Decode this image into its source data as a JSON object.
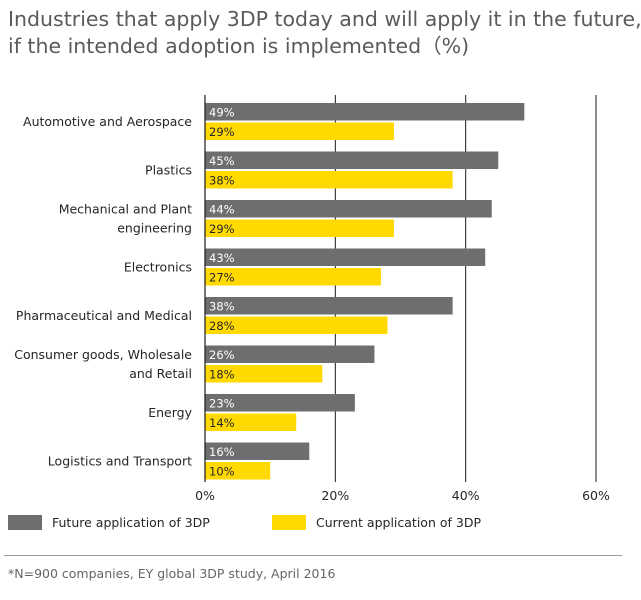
{
  "title": {
    "line1": "Industries that apply 3DP today and will apply it in the future,",
    "line2": "if the intended adoption is implemented（%)"
  },
  "footnote": "*N=900 companies, EY global 3DP study, April 2016",
  "colors": {
    "future": "#6d6e70",
    "current": "#ffd900",
    "axis": "#1a1a1a"
  },
  "chart_data": {
    "type": "bar",
    "orientation": "horizontal",
    "categories": [
      [
        "Automotive and Aerospace"
      ],
      [
        "Plastics"
      ],
      [
        "Mechanical and Plant",
        "engineering"
      ],
      [
        "Electronics"
      ],
      [
        "Pharmaceutical and Medical"
      ],
      [
        "Consumer goods, Wholesale",
        "and Retail"
      ],
      [
        "Energy"
      ],
      [
        "Logistics and Transport"
      ]
    ],
    "series": [
      {
        "name": "Future application of 3DP",
        "values": [
          49,
          45,
          44,
          43,
          38,
          26,
          23,
          16
        ],
        "labels": [
          "49%",
          "45%",
          "44%",
          "43%",
          "38%",
          "26%",
          "23%",
          "16%"
        ]
      },
      {
        "name": "Current application of 3DP",
        "values": [
          29,
          38,
          29,
          27,
          28,
          18,
          14,
          10
        ],
        "labels": [
          "29%",
          "38%",
          "29%",
          "27%",
          "28%",
          "18%",
          "14%",
          "10%"
        ]
      }
    ],
    "xlim": [
      0,
      60
    ],
    "xticks": [
      0,
      20,
      40,
      60
    ],
    "xtick_labels": [
      "0%",
      "20%",
      "40%",
      "60%"
    ],
    "grid": "vertical",
    "legend_position": "bottom"
  }
}
